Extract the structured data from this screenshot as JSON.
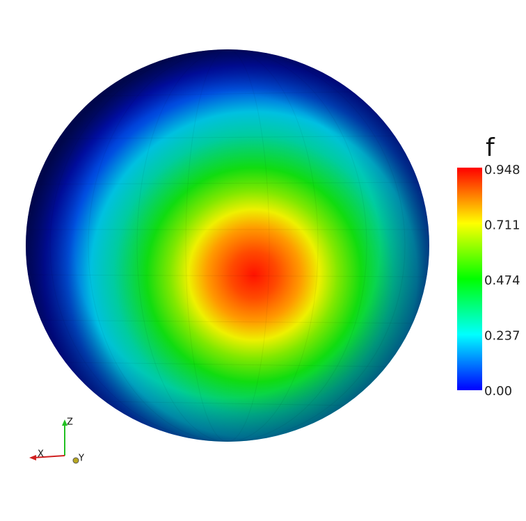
{
  "colorbar": {
    "title": "f",
    "labels": [
      "0.948",
      "0.711",
      "0.474",
      "0.237",
      "0.00"
    ]
  },
  "axes": {
    "z": "Z",
    "x": "X",
    "y": "Y"
  }
}
